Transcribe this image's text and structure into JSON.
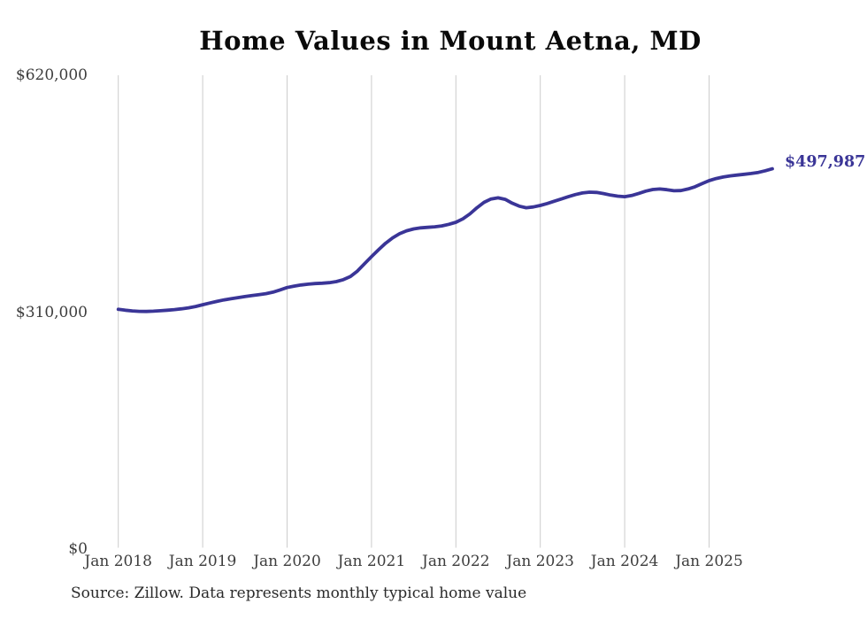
{
  "title": "Home Values in Mount Aetna, MD",
  "source_note": "Source: Zillow. Data represents monthly typical home value",
  "end_label": "$497,987",
  "colors": {
    "line": "#3a3597",
    "grid": "#cccccc",
    "tick_text": "#3d3d3d",
    "title_text": "#0a0a0a",
    "end_label_text": "#3a3597",
    "background": "#ffffff"
  },
  "chart_data": {
    "type": "line",
    "title": "Home Values in Mount Aetna, MD",
    "xlabel": "",
    "ylabel": "",
    "grid": "vertical-only",
    "legend": "none",
    "ylim": [
      0,
      620000
    ],
    "y_ticks": [
      {
        "value": 620000,
        "label": "$620,000"
      },
      {
        "value": 310000,
        "label": "$310,000"
      },
      {
        "value": 0,
        "label": "$0"
      }
    ],
    "x_tick_labels": [
      "Jan 2018",
      "Jan 2019",
      "Jan 2020",
      "Jan 2021",
      "Jan 2022",
      "Jan 2023",
      "Jan 2024",
      "Jan 2025"
    ],
    "x_start_month": "2018-01",
    "x_end_month": "2025-10",
    "final_value": 497987,
    "series": [
      {
        "name": "Typical home value",
        "values": [
          314000,
          312800,
          311800,
          311300,
          311200,
          311500,
          312100,
          312800,
          313600,
          314600,
          315900,
          317700,
          320000,
          322200,
          324300,
          326200,
          327800,
          329300,
          330700,
          332000,
          333200,
          334500,
          336500,
          339300,
          342500,
          344300,
          345800,
          346900,
          347700,
          348200,
          348900,
          350200,
          352800,
          356800,
          364000,
          373500,
          383000,
          392000,
          400500,
          407500,
          413000,
          416800,
          419200,
          420600,
          421300,
          422000,
          423200,
          425300,
          428000,
          432500,
          439000,
          447000,
          454000,
          458500,
          460000,
          458000,
          453000,
          449000,
          447000,
          448000,
          450000,
          452500,
          455500,
          458500,
          461500,
          464200,
          466300,
          467400,
          467000,
          465500,
          463600,
          462200,
          461500,
          463000,
          465800,
          468800,
          470800,
          471500,
          470600,
          469200,
          469500,
          471500,
          474500,
          478500,
          482500,
          485200,
          487200,
          488700,
          489800,
          490800,
          491800,
          493200,
          495500,
          497987
        ]
      }
    ]
  }
}
